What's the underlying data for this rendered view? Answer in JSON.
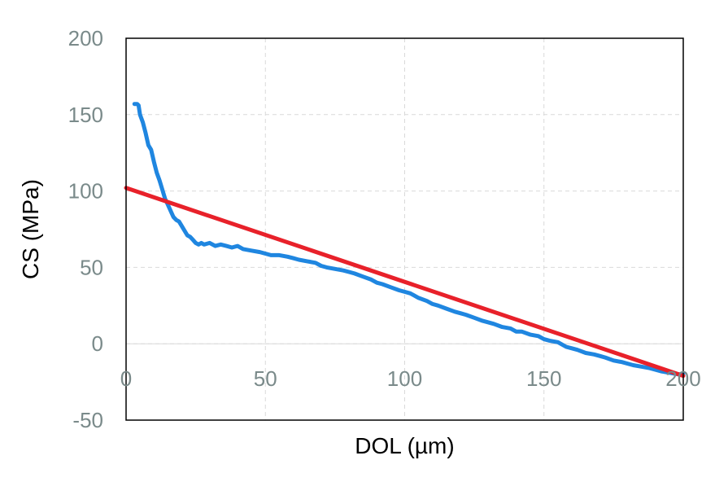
{
  "chart_data": {
    "type": "line",
    "title": "",
    "xlabel": "DOL (µm)",
    "ylabel": "CS (MPa)",
    "xlim": [
      0,
      200
    ],
    "ylim": [
      -50,
      200
    ],
    "xticks": [
      "0",
      "50",
      "100",
      "150",
      "200"
    ],
    "yticks": [
      "200",
      "150",
      "100",
      "50",
      "0",
      "-50"
    ],
    "grid": true,
    "series": [
      {
        "color": "#1f86e0",
        "x": [
          3,
          4,
          4.5,
          5,
          6,
          7,
          8,
          9,
          10,
          11,
          12,
          13,
          14,
          15,
          16,
          17,
          18,
          19,
          20,
          21,
          22,
          23,
          24,
          25,
          26,
          27,
          28,
          30,
          32,
          34,
          36,
          38,
          40,
          42,
          45,
          48,
          50,
          52,
          55,
          58,
          60,
          62,
          65,
          68,
          70,
          72,
          75,
          78,
          80,
          82,
          85,
          88,
          90,
          92,
          95,
          98,
          100,
          102,
          105,
          108,
          110,
          112,
          115,
          118,
          120,
          122,
          125,
          128,
          130,
          132,
          135,
          138,
          140,
          142,
          145,
          148,
          150,
          152,
          155,
          158,
          160,
          162,
          165,
          168,
          170,
          172,
          175,
          178,
          180,
          182,
          185,
          188,
          190,
          192,
          195,
          198,
          200
        ],
        "y": [
          157,
          157,
          156,
          150,
          145,
          138,
          130,
          127,
          119,
          112,
          107,
          101,
          95,
          91,
          87,
          83,
          81,
          80,
          77,
          74,
          71,
          70,
          68,
          66,
          65,
          66,
          65,
          66,
          64,
          65,
          64,
          63,
          64,
          62,
          61,
          60,
          59,
          58,
          58,
          57,
          56,
          55,
          54,
          53,
          51,
          50,
          49,
          48,
          47,
          46,
          44,
          42,
          40,
          39,
          37,
          35,
          34,
          33,
          30,
          28,
          26,
          25,
          23,
          21,
          20,
          19,
          17,
          15,
          14,
          13,
          11,
          10,
          8,
          8,
          6,
          5,
          3,
          2,
          1,
          -2,
          -3,
          -4,
          -6,
          -7,
          -8,
          -9,
          -11,
          -12,
          -13,
          -14,
          -15,
          -16,
          -17,
          -18,
          -19,
          -20,
          -20
        ]
      },
      {
        "color": "#e8212a",
        "x": [
          0,
          200
        ],
        "y": [
          102,
          -21
        ]
      }
    ]
  }
}
